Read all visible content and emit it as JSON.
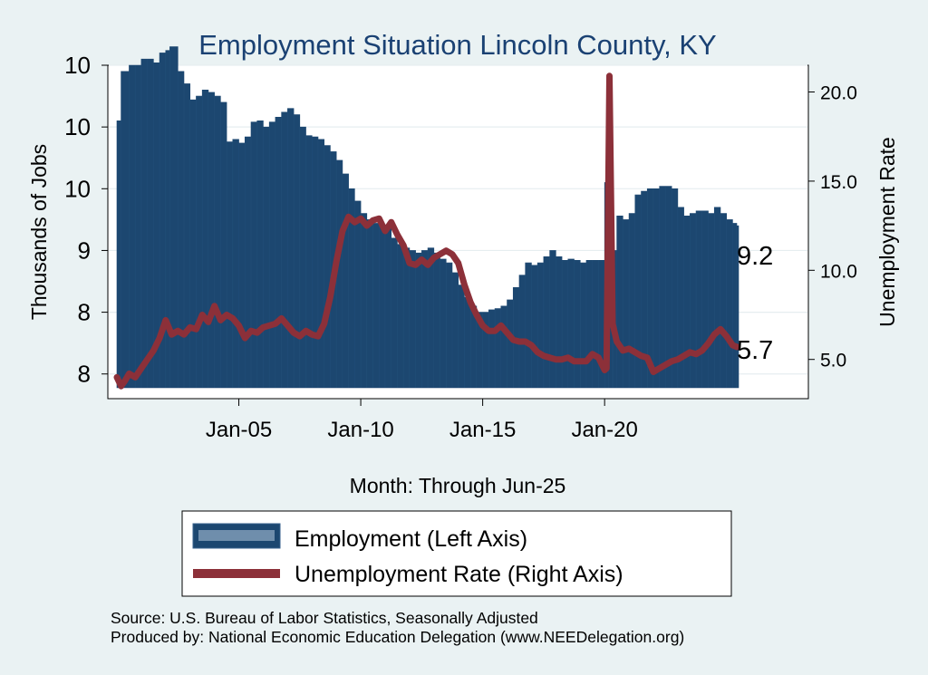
{
  "chart_data": {
    "type": "bar+line",
    "title": "Employment Situation Lincoln  County, KY",
    "xlabel": "Month: Through Jun-25",
    "ylabel_left": "Thousands of Jobs",
    "ylabel_right": "Unemployment Rate",
    "x_range": [
      2000.0,
      2025.42
    ],
    "y_left_range": [
      7.8,
      10.5
    ],
    "y_right_range": [
      2.8,
      21.5
    ],
    "x_ticks": [
      {
        "value": 2005.0,
        "label": "Jan-05"
      },
      {
        "value": 2010.0,
        "label": "Jan-10"
      },
      {
        "value": 2015.0,
        "label": "Jan-15"
      },
      {
        "value": 2020.0,
        "label": "Jan-20"
      }
    ],
    "y_left_ticks": [
      {
        "value": 8.0,
        "label": "8"
      },
      {
        "value": 8.5,
        "label": "8"
      },
      {
        "value": 9.0,
        "label": "9"
      },
      {
        "value": 9.5,
        "label": "10"
      },
      {
        "value": 10.0,
        "label": "10"
      },
      {
        "value": 10.5,
        "label": "10"
      }
    ],
    "y_right_ticks": [
      {
        "value": 5.0,
        "label": "5.0"
      },
      {
        "value": 10.0,
        "label": "10.0"
      },
      {
        "value": 15.0,
        "label": "15.0"
      },
      {
        "value": 20.0,
        "label": "20.0"
      }
    ],
    "grid": true,
    "legend_position": "bottom",
    "series": [
      {
        "name": "Employment (Left Axis)",
        "axis": "left",
        "kind": "bar",
        "color": "#1c4770",
        "last_value_label": "9.2",
        "points": [
          [
            2000.0,
            10.05
          ],
          [
            2000.17,
            10.45
          ],
          [
            2000.5,
            10.5
          ],
          [
            2000.75,
            10.5
          ],
          [
            2001.0,
            10.55
          ],
          [
            2001.25,
            10.55
          ],
          [
            2001.5,
            10.52
          ],
          [
            2001.75,
            10.6
          ],
          [
            2002.0,
            10.62
          ],
          [
            2002.17,
            10.65
          ],
          [
            2002.5,
            10.45
          ],
          [
            2002.75,
            10.35
          ],
          [
            2003.0,
            10.22
          ],
          [
            2003.25,
            10.25
          ],
          [
            2003.5,
            10.3
          ],
          [
            2003.75,
            10.28
          ],
          [
            2004.0,
            10.25
          ],
          [
            2004.25,
            10.2
          ],
          [
            2004.5,
            9.88
          ],
          [
            2004.75,
            9.9
          ],
          [
            2005.0,
            9.87
          ],
          [
            2005.25,
            9.92
          ],
          [
            2005.5,
            10.04
          ],
          [
            2005.75,
            10.05
          ],
          [
            2006.0,
            10.0
          ],
          [
            2006.25,
            10.04
          ],
          [
            2006.5,
            10.08
          ],
          [
            2006.75,
            10.12
          ],
          [
            2007.0,
            10.15
          ],
          [
            2007.25,
            10.1
          ],
          [
            2007.5,
            10.0
          ],
          [
            2007.75,
            9.93
          ],
          [
            2008.0,
            9.92
          ],
          [
            2008.25,
            9.9
          ],
          [
            2008.5,
            9.85
          ],
          [
            2008.75,
            9.8
          ],
          [
            2009.0,
            9.73
          ],
          [
            2009.25,
            9.62
          ],
          [
            2009.5,
            9.5
          ],
          [
            2009.75,
            9.4
          ],
          [
            2010.0,
            9.3
          ],
          [
            2010.25,
            9.25
          ],
          [
            2010.5,
            9.22
          ],
          [
            2010.75,
            9.2
          ],
          [
            2011.0,
            9.18
          ],
          [
            2011.25,
            9.1
          ],
          [
            2011.5,
            9.05
          ],
          [
            2011.75,
            9.02
          ],
          [
            2012.0,
            9.0
          ],
          [
            2012.25,
            8.98
          ],
          [
            2012.5,
            9.0
          ],
          [
            2012.75,
            9.02
          ],
          [
            2013.0,
            8.98
          ],
          [
            2013.25,
            8.93
          ],
          [
            2013.5,
            8.9
          ],
          [
            2013.75,
            8.82
          ],
          [
            2014.0,
            8.72
          ],
          [
            2014.25,
            8.62
          ],
          [
            2014.5,
            8.55
          ],
          [
            2014.75,
            8.5
          ],
          [
            2015.0,
            8.5
          ],
          [
            2015.25,
            8.52
          ],
          [
            2015.5,
            8.53
          ],
          [
            2015.75,
            8.55
          ],
          [
            2016.0,
            8.6
          ],
          [
            2016.25,
            8.7
          ],
          [
            2016.5,
            8.8
          ],
          [
            2016.75,
            8.9
          ],
          [
            2017.0,
            8.88
          ],
          [
            2017.25,
            8.9
          ],
          [
            2017.5,
            8.95
          ],
          [
            2017.75,
            9.0
          ],
          [
            2018.0,
            8.95
          ],
          [
            2018.25,
            8.92
          ],
          [
            2018.5,
            8.93
          ],
          [
            2018.75,
            8.92
          ],
          [
            2019.0,
            8.9
          ],
          [
            2019.25,
            8.92
          ],
          [
            2019.5,
            8.92
          ],
          [
            2019.75,
            8.92
          ],
          [
            2020.0,
            9.55
          ],
          [
            2020.17,
            8.9
          ],
          [
            2020.33,
            9.0
          ],
          [
            2020.5,
            9.28
          ],
          [
            2020.75,
            9.25
          ],
          [
            2021.0,
            9.3
          ],
          [
            2021.25,
            9.45
          ],
          [
            2021.5,
            9.48
          ],
          [
            2021.75,
            9.5
          ],
          [
            2022.0,
            9.5
          ],
          [
            2022.25,
            9.52
          ],
          [
            2022.5,
            9.52
          ],
          [
            2022.75,
            9.5
          ],
          [
            2023.0,
            9.35
          ],
          [
            2023.25,
            9.28
          ],
          [
            2023.5,
            9.3
          ],
          [
            2023.75,
            9.32
          ],
          [
            2024.0,
            9.32
          ],
          [
            2024.25,
            9.3
          ],
          [
            2024.5,
            9.35
          ],
          [
            2024.75,
            9.3
          ],
          [
            2025.0,
            9.25
          ],
          [
            2025.25,
            9.22
          ],
          [
            2025.42,
            9.2
          ]
        ]
      },
      {
        "name": "Unemployment Rate (Right Axis)",
        "axis": "right",
        "kind": "line",
        "color": "#8c3039",
        "last_value_label": "5.7",
        "points": [
          [
            2000.0,
            4.0
          ],
          [
            2000.17,
            3.5
          ],
          [
            2000.33,
            3.8
          ],
          [
            2000.5,
            4.2
          ],
          [
            2000.75,
            4.0
          ],
          [
            2001.0,
            4.5
          ],
          [
            2001.25,
            5.0
          ],
          [
            2001.5,
            5.5
          ],
          [
            2001.75,
            6.2
          ],
          [
            2002.0,
            7.2
          ],
          [
            2002.25,
            6.4
          ],
          [
            2002.5,
            6.6
          ],
          [
            2002.75,
            6.4
          ],
          [
            2003.0,
            6.8
          ],
          [
            2003.25,
            6.7
          ],
          [
            2003.5,
            7.5
          ],
          [
            2003.75,
            7.1
          ],
          [
            2004.0,
            8.0
          ],
          [
            2004.25,
            7.2
          ],
          [
            2004.5,
            7.5
          ],
          [
            2004.75,
            7.3
          ],
          [
            2005.0,
            6.9
          ],
          [
            2005.25,
            6.2
          ],
          [
            2005.5,
            6.6
          ],
          [
            2005.75,
            6.5
          ],
          [
            2006.0,
            6.8
          ],
          [
            2006.25,
            6.9
          ],
          [
            2006.5,
            7.0
          ],
          [
            2006.75,
            7.3
          ],
          [
            2007.0,
            6.9
          ],
          [
            2007.25,
            6.5
          ],
          [
            2007.5,
            6.3
          ],
          [
            2007.75,
            6.6
          ],
          [
            2008.0,
            6.4
          ],
          [
            2008.25,
            6.3
          ],
          [
            2008.5,
            7.0
          ],
          [
            2008.75,
            8.5
          ],
          [
            2009.0,
            10.5
          ],
          [
            2009.25,
            12.2
          ],
          [
            2009.5,
            13.0
          ],
          [
            2009.75,
            12.7
          ],
          [
            2010.0,
            12.9
          ],
          [
            2010.25,
            12.5
          ],
          [
            2010.5,
            12.8
          ],
          [
            2010.75,
            12.9
          ],
          [
            2011.0,
            12.2
          ],
          [
            2011.25,
            12.7
          ],
          [
            2011.5,
            12.0
          ],
          [
            2011.75,
            11.4
          ],
          [
            2012.0,
            10.4
          ],
          [
            2012.25,
            10.3
          ],
          [
            2012.5,
            10.6
          ],
          [
            2012.75,
            10.3
          ],
          [
            2013.0,
            10.7
          ],
          [
            2013.25,
            10.9
          ],
          [
            2013.5,
            11.1
          ],
          [
            2013.75,
            10.9
          ],
          [
            2014.0,
            10.4
          ],
          [
            2014.25,
            9.2
          ],
          [
            2014.5,
            8.2
          ],
          [
            2014.75,
            7.5
          ],
          [
            2015.0,
            6.9
          ],
          [
            2015.25,
            6.6
          ],
          [
            2015.5,
            6.6
          ],
          [
            2015.75,
            6.9
          ],
          [
            2016.0,
            6.5
          ],
          [
            2016.25,
            6.1
          ],
          [
            2016.5,
            6.0
          ],
          [
            2016.75,
            6.0
          ],
          [
            2017.0,
            5.8
          ],
          [
            2017.25,
            5.4
          ],
          [
            2017.5,
            5.2
          ],
          [
            2017.75,
            5.1
          ],
          [
            2018.0,
            5.0
          ],
          [
            2018.25,
            5.0
          ],
          [
            2018.5,
            5.1
          ],
          [
            2018.75,
            4.9
          ],
          [
            2019.0,
            4.9
          ],
          [
            2019.25,
            4.9
          ],
          [
            2019.5,
            5.3
          ],
          [
            2019.75,
            5.1
          ],
          [
            2020.0,
            4.4
          ],
          [
            2020.08,
            4.5
          ],
          [
            2020.2,
            20.9
          ],
          [
            2020.33,
            7.0
          ],
          [
            2020.5,
            6.0
          ],
          [
            2020.75,
            5.5
          ],
          [
            2021.0,
            5.6
          ],
          [
            2021.25,
            5.4
          ],
          [
            2021.5,
            5.2
          ],
          [
            2021.75,
            5.1
          ],
          [
            2022.0,
            4.3
          ],
          [
            2022.25,
            4.5
          ],
          [
            2022.5,
            4.7
          ],
          [
            2022.75,
            4.9
          ],
          [
            2023.0,
            5.0
          ],
          [
            2023.25,
            5.2
          ],
          [
            2023.5,
            5.4
          ],
          [
            2023.75,
            5.3
          ],
          [
            2024.0,
            5.5
          ],
          [
            2024.25,
            5.9
          ],
          [
            2024.5,
            6.4
          ],
          [
            2024.75,
            6.7
          ],
          [
            2025.0,
            6.3
          ],
          [
            2025.25,
            5.8
          ],
          [
            2025.42,
            5.7
          ]
        ]
      }
    ]
  },
  "source_line": "Source: U.S. Bureau of Labor Statistics, Seasonally Adjusted",
  "producer_line": "Produced by: National Economic Education Delegation (www.NEEDelegation.org)"
}
